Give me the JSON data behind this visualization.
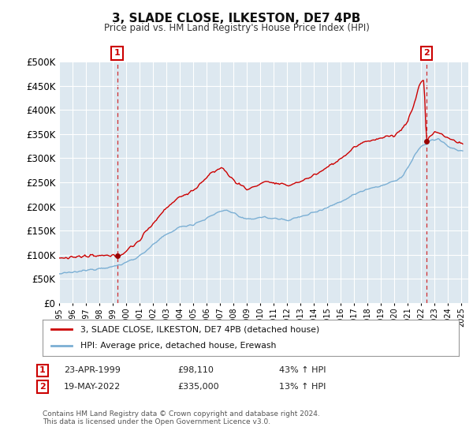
{
  "title": "3, SLADE CLOSE, ILKESTON, DE7 4PB",
  "subtitle": "Price paid vs. HM Land Registry's House Price Index (HPI)",
  "legend_line1": "3, SLADE CLOSE, ILKESTON, DE7 4PB (detached house)",
  "legend_line2": "HPI: Average price, detached house, Erewash",
  "annotation1_label": "1",
  "annotation1_date": "23-APR-1999",
  "annotation1_price": "£98,110",
  "annotation1_hpi": "43% ↑ HPI",
  "annotation2_label": "2",
  "annotation2_date": "19-MAY-2022",
  "annotation2_price": "£335,000",
  "annotation2_hpi": "13% ↑ HPI",
  "footer": "Contains HM Land Registry data © Crown copyright and database right 2024.\nThis data is licensed under the Open Government Licence v3.0.",
  "hpi_color": "#7bafd4",
  "price_color": "#cc0000",
  "dot_color": "#990000",
  "annotation_box_color": "#cc0000",
  "chart_bg": "#dde8f0",
  "ylim": [
    0,
    500000
  ],
  "ylabel_ticks": [
    0,
    50000,
    100000,
    150000,
    200000,
    250000,
    300000,
    350000,
    400000,
    450000,
    500000
  ],
  "background_color": "#ffffff",
  "grid_color": "#ffffff"
}
